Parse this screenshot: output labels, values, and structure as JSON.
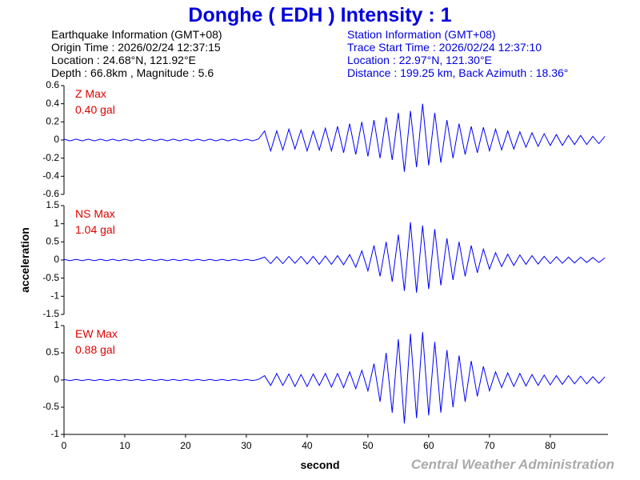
{
  "header": {
    "title": "Donghe  ( EDH )  Intensity : 1",
    "earthquake_info": [
      "Earthquake Information  (GMT+08)",
      "Origin Time : 2026/02/24 12:37:15",
      "Location : 24.68°N, 121.92°E",
      "Depth : 66.8km , Magnitude : 5.6"
    ],
    "station_info": [
      "Station Information  (GMT+08)",
      "Trace Start Time : 2026/02/24 12:37:10",
      "Location : 22.97°N, 121.30°E",
      "Distance : 199.25 km, Back Azimuth : 18.36°"
    ]
  },
  "footer": "Central Weather Administration",
  "chart_data": [
    {
      "type": "line",
      "annotations": [
        "Z Max",
        "0.40 gal"
      ],
      "color": "#0000ff",
      "annotation_color": "#e00000",
      "ylim": [
        -0.6,
        0.6
      ],
      "yticks": [
        0.6,
        0.4,
        0.2,
        0,
        -0.2,
        -0.4,
        -0.6
      ],
      "xlim": [
        0,
        89.5
      ],
      "x": [
        0,
        1,
        2,
        3,
        4,
        5,
        6,
        7,
        8,
        9,
        10,
        11,
        12,
        13,
        14,
        15,
        16,
        17,
        18,
        19,
        20,
        21,
        22,
        23,
        24,
        25,
        26,
        27,
        28,
        29,
        30,
        31,
        32,
        33,
        34,
        35,
        36,
        37,
        38,
        39,
        40,
        41,
        42,
        43,
        44,
        45,
        46,
        47,
        48,
        49,
        50,
        51,
        52,
        53,
        54,
        55,
        56,
        57,
        58,
        59,
        60,
        61,
        62,
        63,
        64,
        65,
        66,
        67,
        68,
        69,
        70,
        71,
        72,
        73,
        74,
        75,
        76,
        77,
        78,
        79,
        80,
        81,
        82,
        83,
        84,
        85,
        86,
        87,
        88,
        89
      ],
      "values": [
        0.01,
        -0.01,
        0.01,
        -0.01,
        0.01,
        -0.01,
        0.01,
        -0.01,
        0.01,
        -0.01,
        0.01,
        -0.01,
        0.01,
        -0.01,
        0.01,
        -0.01,
        0.01,
        -0.01,
        0.01,
        -0.01,
        0.01,
        -0.01,
        0.01,
        -0.01,
        0.01,
        -0.01,
        0.01,
        -0.01,
        0.01,
        -0.01,
        0.01,
        -0.01,
        0.01,
        0.1,
        -0.12,
        0.1,
        -0.11,
        0.12,
        -0.1,
        0.11,
        -0.12,
        0.1,
        -0.11,
        0.13,
        -0.12,
        0.15,
        -0.14,
        0.18,
        -0.16,
        0.2,
        -0.18,
        0.22,
        -0.2,
        0.25,
        -0.22,
        0.3,
        -0.35,
        0.32,
        -0.3,
        0.4,
        -0.28,
        0.3,
        -0.25,
        0.22,
        -0.2,
        0.18,
        -0.16,
        0.15,
        -0.14,
        0.14,
        -0.12,
        0.12,
        -0.11,
        0.1,
        -0.1,
        0.09,
        -0.08,
        0.08,
        -0.07,
        0.07,
        -0.06,
        0.06,
        -0.06,
        0.05,
        -0.05,
        0.05,
        -0.05,
        0.04,
        -0.04,
        0.04
      ]
    },
    {
      "type": "line",
      "annotations": [
        "NS Max",
        "1.04 gal"
      ],
      "color": "#0000ff",
      "annotation_color": "#e00000",
      "ylabel": "acceleration",
      "ylim": [
        -1.5,
        1.5
      ],
      "yticks": [
        1.5,
        1,
        0.5,
        0,
        -0.5,
        -1,
        -1.5
      ],
      "xlim": [
        0,
        89.5
      ],
      "x": [
        0,
        1,
        2,
        3,
        4,
        5,
        6,
        7,
        8,
        9,
        10,
        11,
        12,
        13,
        14,
        15,
        16,
        17,
        18,
        19,
        20,
        21,
        22,
        23,
        24,
        25,
        26,
        27,
        28,
        29,
        30,
        31,
        32,
        33,
        34,
        35,
        36,
        37,
        38,
        39,
        40,
        41,
        42,
        43,
        44,
        45,
        46,
        47,
        48,
        49,
        50,
        51,
        52,
        53,
        54,
        55,
        56,
        57,
        58,
        59,
        60,
        61,
        62,
        63,
        64,
        65,
        66,
        67,
        68,
        69,
        70,
        71,
        72,
        73,
        74,
        75,
        76,
        77,
        78,
        79,
        80,
        81,
        82,
        83,
        84,
        85,
        86,
        87,
        88,
        89
      ],
      "values": [
        0.02,
        -0.02,
        0.02,
        -0.02,
        0.02,
        -0.02,
        0.02,
        -0.02,
        0.02,
        -0.02,
        0.02,
        -0.02,
        0.02,
        -0.02,
        0.02,
        -0.02,
        0.02,
        -0.02,
        0.02,
        -0.02,
        0.02,
        -0.02,
        0.02,
        -0.02,
        0.02,
        -0.02,
        0.02,
        -0.02,
        0.02,
        -0.02,
        0.02,
        -0.02,
        0.02,
        0.08,
        -0.1,
        0.09,
        -0.1,
        0.1,
        -0.09,
        0.1,
        -0.11,
        0.1,
        -0.12,
        0.11,
        -0.12,
        0.12,
        -0.13,
        0.15,
        -0.2,
        0.25,
        -0.3,
        0.4,
        -0.45,
        0.5,
        -0.6,
        0.7,
        -0.85,
        1.04,
        -0.9,
        0.95,
        -0.8,
        0.85,
        -0.7,
        0.6,
        -0.55,
        0.5,
        -0.45,
        0.4,
        -0.35,
        0.3,
        -0.25,
        0.2,
        -0.18,
        0.16,
        -0.15,
        0.14,
        -0.12,
        0.12,
        -0.11,
        0.1,
        -0.1,
        0.09,
        -0.09,
        0.08,
        -0.08,
        0.08,
        -0.07,
        0.07,
        -0.07,
        0.06
      ]
    },
    {
      "type": "line",
      "annotations": [
        "EW Max",
        "0.88 gal"
      ],
      "color": "#0000ff",
      "annotation_color": "#e00000",
      "xlabel": "second",
      "ylim": [
        -1,
        1
      ],
      "yticks": [
        1,
        0.5,
        0,
        -0.5,
        -1
      ],
      "xlim": [
        0,
        89.5
      ],
      "xticks": [
        0,
        10,
        20,
        30,
        40,
        50,
        60,
        70,
        80
      ],
      "x": [
        0,
        1,
        2,
        3,
        4,
        5,
        6,
        7,
        8,
        9,
        10,
        11,
        12,
        13,
        14,
        15,
        16,
        17,
        18,
        19,
        20,
        21,
        22,
        23,
        24,
        25,
        26,
        27,
        28,
        29,
        30,
        31,
        32,
        33,
        34,
        35,
        36,
        37,
        38,
        39,
        40,
        41,
        42,
        43,
        44,
        45,
        46,
        47,
        48,
        49,
        50,
        51,
        52,
        53,
        54,
        55,
        56,
        57,
        58,
        59,
        60,
        61,
        62,
        63,
        64,
        65,
        66,
        67,
        68,
        69,
        70,
        71,
        72,
        73,
        74,
        75,
        76,
        77,
        78,
        79,
        80,
        81,
        82,
        83,
        84,
        85,
        86,
        87,
        88,
        89
      ],
      "values": [
        0.01,
        -0.01,
        0.01,
        -0.01,
        0.01,
        -0.01,
        0.01,
        -0.01,
        0.01,
        -0.01,
        0.01,
        -0.01,
        0.01,
        -0.01,
        0.01,
        -0.01,
        0.01,
        -0.01,
        0.01,
        -0.01,
        0.01,
        -0.01,
        0.01,
        -0.01,
        0.01,
        -0.01,
        0.01,
        -0.01,
        0.01,
        -0.01,
        0.01,
        -0.01,
        0.01,
        0.08,
        -0.1,
        0.12,
        -0.1,
        0.11,
        -0.12,
        0.1,
        -0.12,
        0.11,
        -0.1,
        0.12,
        -0.13,
        0.12,
        -0.14,
        0.15,
        -0.16,
        0.18,
        -0.2,
        0.3,
        -0.4,
        0.5,
        -0.6,
        0.75,
        -0.8,
        0.85,
        -0.7,
        0.88,
        -0.65,
        0.7,
        -0.6,
        0.55,
        -0.5,
        0.45,
        -0.4,
        0.35,
        -0.3,
        0.25,
        -0.2,
        0.15,
        -0.14,
        0.13,
        -0.12,
        0.12,
        -0.11,
        0.1,
        -0.1,
        0.09,
        -0.09,
        0.08,
        -0.08,
        0.08,
        -0.07,
        0.07,
        -0.07,
        0.06,
        -0.06,
        0.06
      ]
    }
  ]
}
